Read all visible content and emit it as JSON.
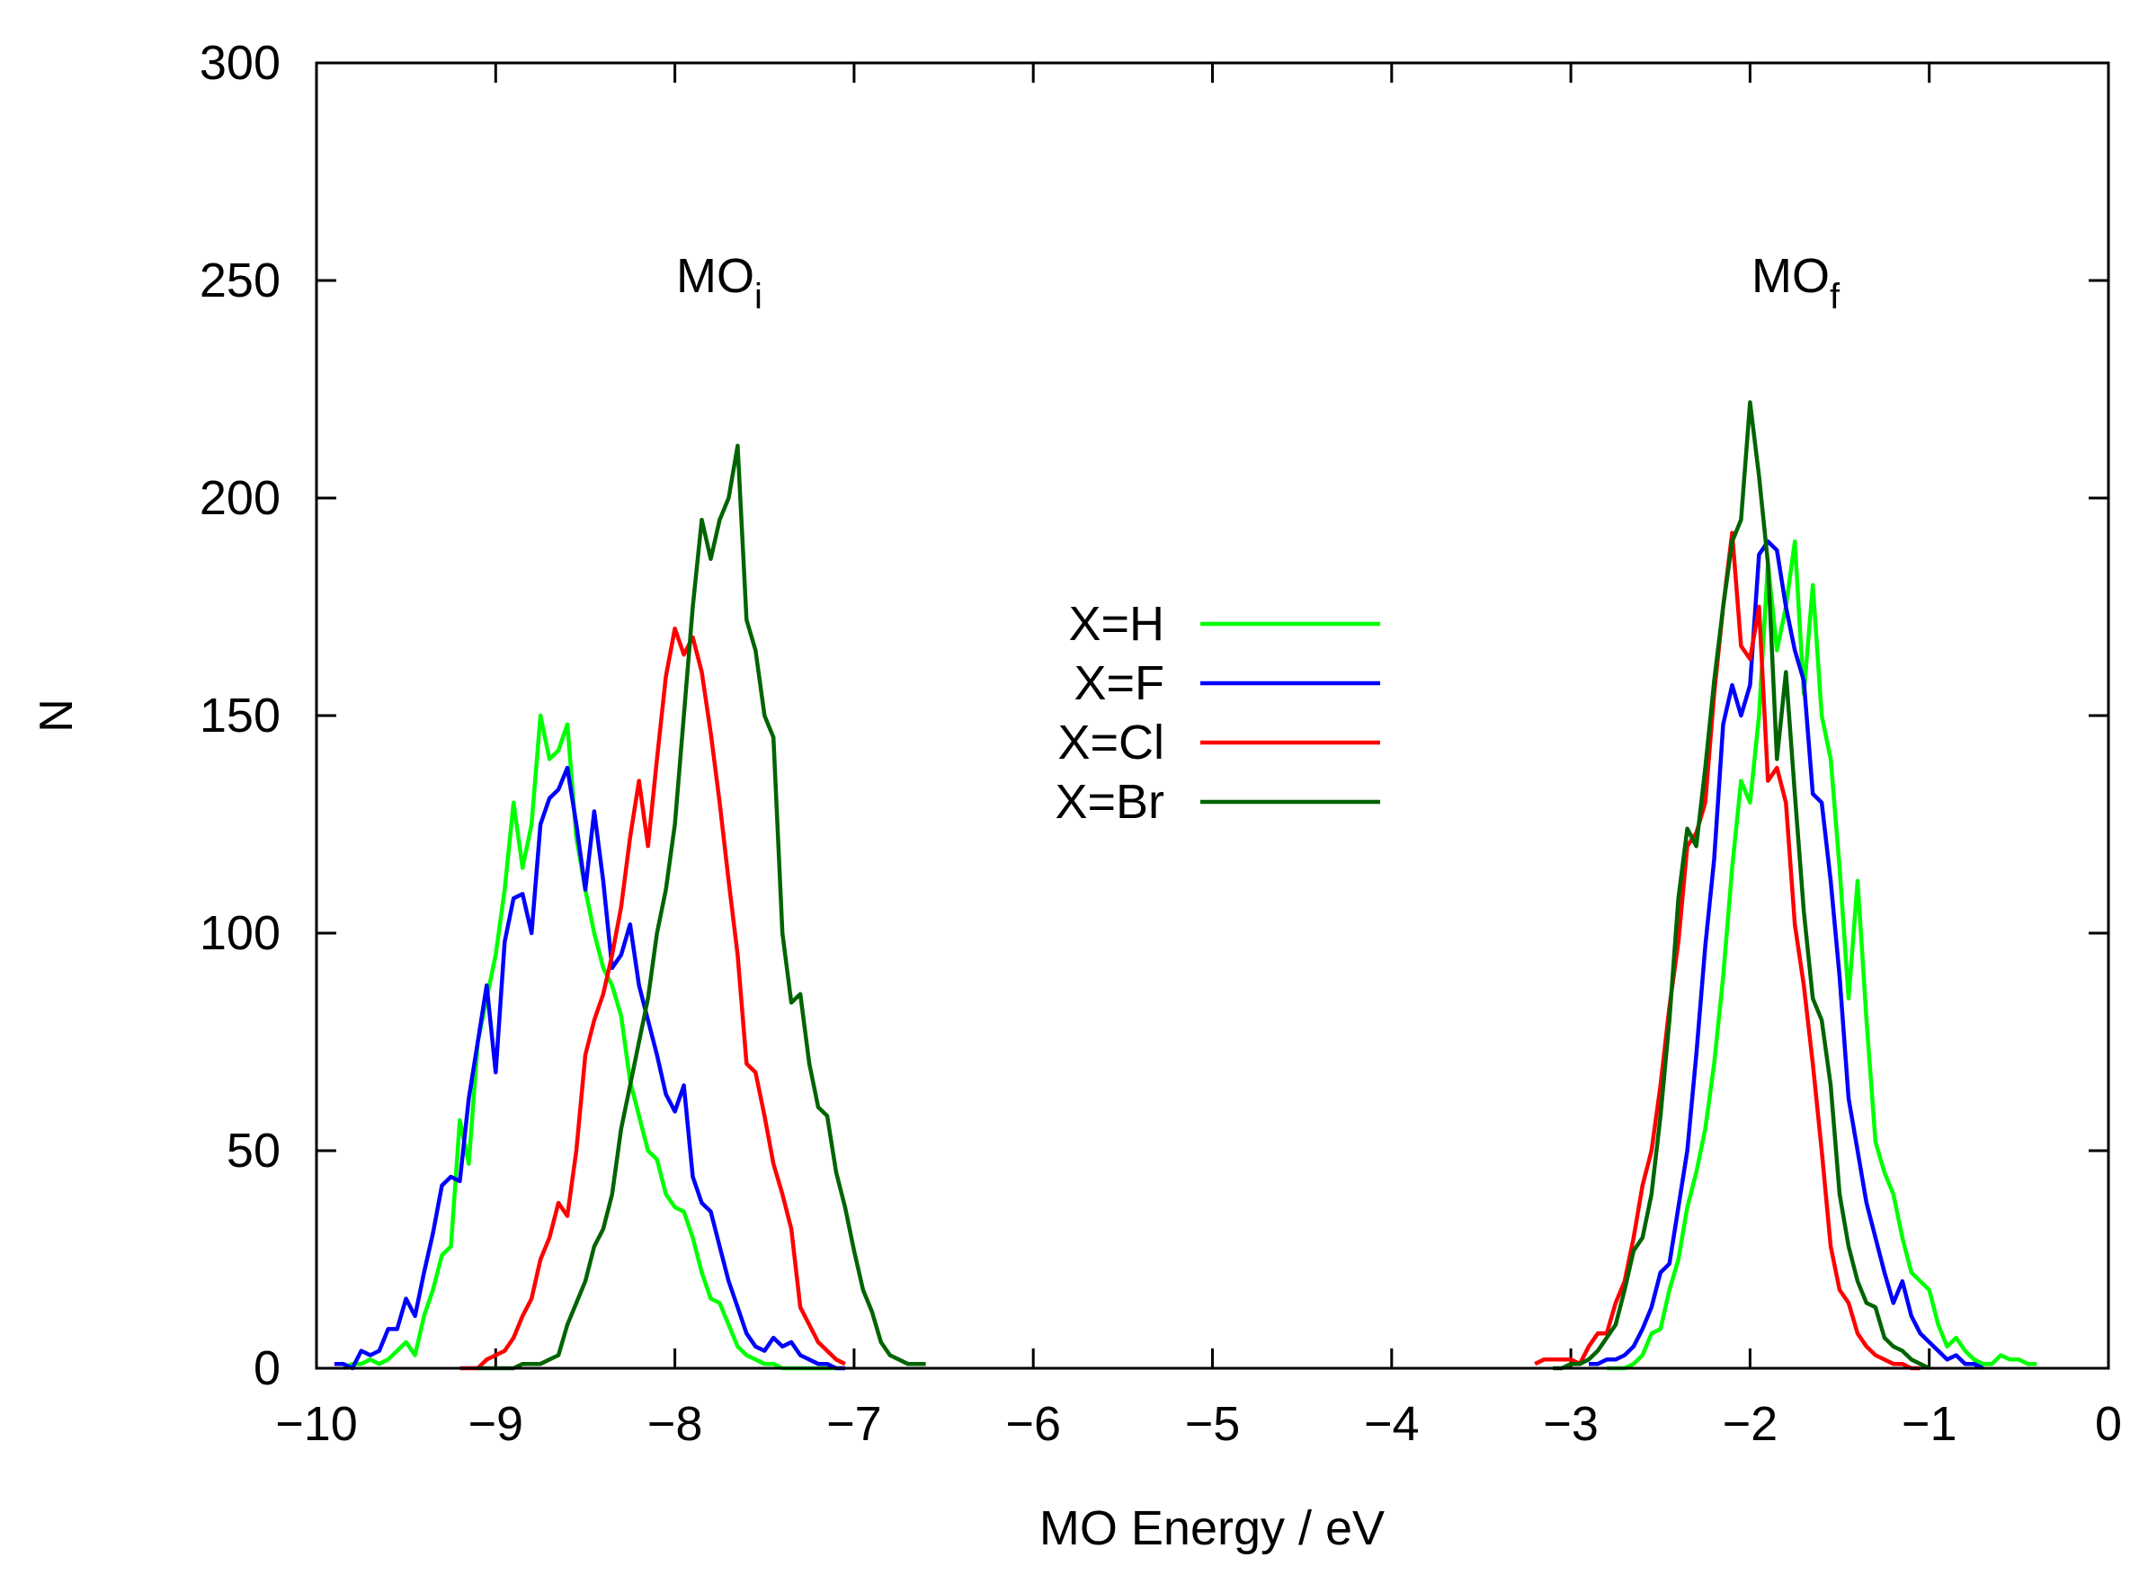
{
  "chart_data": {
    "type": "line",
    "title": "",
    "xlabel": "MO Energy / eV",
    "ylabel": "N",
    "xlim": [
      -10,
      0
    ],
    "ylim": [
      0,
      300
    ],
    "xticks": [
      -10,
      -9,
      -8,
      -7,
      -6,
      -5,
      -4,
      -3,
      -2,
      -1,
      0
    ],
    "xtick_labels": [
      "−10",
      "−9",
      "−8",
      "−7",
      "−6",
      "−5",
      "−4",
      "−3",
      "−2",
      "−1",
      "0"
    ],
    "yticks": [
      0,
      50,
      100,
      150,
      200,
      250,
      300
    ],
    "ytick_labels": [
      "0",
      "50",
      "100",
      "150",
      "200",
      "250",
      "300"
    ],
    "grid": false,
    "legend_position": "center",
    "annotations": [
      {
        "text": "MO",
        "sub": "i",
        "x": -8.3,
        "y": 250
      },
      {
        "text": "MO",
        "sub": "f",
        "x": -2.3,
        "y": 250
      }
    ],
    "series": [
      {
        "name": "X=H",
        "color": "#00ff00",
        "segments": [
          {
            "x": [
              -9.85,
              -9.8,
              -9.75,
              -9.7,
              -9.65,
              -9.6,
              -9.55,
              -9.5,
              -9.45,
              -9.4,
              -9.35,
              -9.3,
              -9.25,
              -9.2,
              -9.15,
              -9.1,
              -9.05,
              -9.0,
              -8.95,
              -8.9,
              -8.85,
              -8.8,
              -8.75,
              -8.7,
              -8.65,
              -8.6,
              -8.55,
              -8.5,
              -8.45,
              -8.4,
              -8.35,
              -8.3,
              -8.25,
              -8.2,
              -8.15,
              -8.1,
              -8.05,
              -8.0,
              -7.95,
              -7.9,
              -7.85,
              -7.8,
              -7.75,
              -7.7,
              -7.65,
              -7.6,
              -7.55,
              -7.5,
              -7.45,
              -7.4,
              -7.35,
              -7.3,
              -7.25,
              -7.2,
              -7.15,
              -7.1
            ],
            "y": [
              0,
              1,
              1,
              2,
              1,
              2,
              4,
              6,
              3,
              12,
              18,
              26,
              28,
              57,
              47,
              75,
              85,
              95,
              110,
              130,
              115,
              125,
              150,
              140,
              142,
              148,
              122,
              110,
              100,
              92,
              88,
              81,
              66,
              58,
              50,
              48,
              40,
              37,
              36,
              30,
              22,
              16,
              15,
              10,
              5,
              3,
              2,
              1,
              1,
              0,
              0,
              0,
              0,
              0,
              0,
              0
            ]
          },
          {
            "x": [
              -2.8,
              -2.75,
              -2.7,
              -2.65,
              -2.6,
              -2.55,
              -2.5,
              -2.45,
              -2.4,
              -2.35,
              -2.3,
              -2.25,
              -2.2,
              -2.15,
              -2.1,
              -2.05,
              -2.0,
              -1.95,
              -1.9,
              -1.85,
              -1.8,
              -1.75,
              -1.7,
              -1.65,
              -1.6,
              -1.55,
              -1.5,
              -1.45,
              -1.4,
              -1.35,
              -1.3,
              -1.25,
              -1.2,
              -1.15,
              -1.1,
              -1.05,
              -1.0,
              -0.95,
              -0.9,
              -0.85,
              -0.8,
              -0.75,
              -0.7,
              -0.65,
              -0.6,
              -0.55,
              -0.5,
              -0.45,
              -0.4
            ],
            "y": [
              0,
              0,
              0,
              1,
              3,
              8,
              9,
              18,
              25,
              37,
              45,
              55,
              70,
              90,
              115,
              135,
              130,
              150,
              185,
              165,
              175,
              190,
              155,
              180,
              150,
              140,
              115,
              85,
              112,
              80,
              52,
              45,
              40,
              30,
              22,
              20,
              18,
              10,
              5,
              7,
              4,
              2,
              1,
              1,
              3,
              2,
              2,
              1,
              1
            ]
          }
        ]
      },
      {
        "name": "X=F",
        "color": "#0000ff",
        "segments": [
          {
            "x": [
              -9.9,
              -9.85,
              -9.8,
              -9.75,
              -9.7,
              -9.65,
              -9.6,
              -9.55,
              -9.5,
              -9.45,
              -9.4,
              -9.35,
              -9.3,
              -9.25,
              -9.2,
              -9.15,
              -9.1,
              -9.05,
              -9.0,
              -8.95,
              -8.9,
              -8.85,
              -8.8,
              -8.75,
              -8.7,
              -8.65,
              -8.6,
              -8.55,
              -8.5,
              -8.45,
              -8.4,
              -8.35,
              -8.3,
              -8.25,
              -8.2,
              -8.15,
              -8.1,
              -8.05,
              -8.0,
              -7.95,
              -7.9,
              -7.85,
              -7.8,
              -7.75,
              -7.7,
              -7.65,
              -7.6,
              -7.55,
              -7.5,
              -7.45,
              -7.4,
              -7.35,
              -7.3,
              -7.25,
              -7.2,
              -7.15,
              -7.1,
              -7.05
            ],
            "y": [
              1,
              1,
              0,
              4,
              3,
              4,
              9,
              9,
              16,
              12,
              22,
              31,
              42,
              44,
              43,
              62,
              75,
              88,
              68,
              98,
              108,
              109,
              100,
              125,
              131,
              133,
              138,
              125,
              110,
              128,
              112,
              92,
              95,
              102,
              88,
              80,
              72,
              63,
              59,
              65,
              44,
              38,
              36,
              28,
              20,
              14,
              8,
              5,
              4,
              7,
              5,
              6,
              3,
              2,
              1,
              1,
              0,
              0
            ]
          },
          {
            "x": [
              -2.9,
              -2.85,
              -2.8,
              -2.75,
              -2.7,
              -2.65,
              -2.6,
              -2.55,
              -2.5,
              -2.45,
              -2.4,
              -2.35,
              -2.3,
              -2.25,
              -2.2,
              -2.15,
              -2.1,
              -2.05,
              -2.0,
              -1.95,
              -1.9,
              -1.85,
              -1.8,
              -1.75,
              -1.7,
              -1.65,
              -1.6,
              -1.55,
              -1.5,
              -1.45,
              -1.4,
              -1.35,
              -1.3,
              -1.25,
              -1.2,
              -1.15,
              -1.1,
              -1.05,
              -1.0,
              -0.95,
              -0.9,
              -0.85,
              -0.8,
              -0.75,
              -0.7
            ],
            "y": [
              1,
              1,
              2,
              2,
              3,
              5,
              9,
              14,
              22,
              24,
              37,
              50,
              72,
              97,
              117,
              148,
              157,
              150,
              157,
              187,
              190,
              188,
              175,
              165,
              158,
              132,
              130,
              112,
              90,
              62,
              50,
              38,
              30,
              22,
              15,
              20,
              12,
              8,
              6,
              4,
              2,
              3,
              1,
              1,
              0
            ]
          }
        ]
      },
      {
        "name": "X=Cl",
        "color": "#ff0000",
        "segments": [
          {
            "x": [
              -9.2,
              -9.15,
              -9.1,
              -9.05,
              -9.0,
              -8.95,
              -8.9,
              -8.85,
              -8.8,
              -8.75,
              -8.7,
              -8.65,
              -8.6,
              -8.55,
              -8.5,
              -8.45,
              -8.4,
              -8.35,
              -8.3,
              -8.25,
              -8.2,
              -8.15,
              -8.1,
              -8.05,
              -8.0,
              -7.95,
              -7.9,
              -7.85,
              -7.8,
              -7.75,
              -7.7,
              -7.65,
              -7.6,
              -7.55,
              -7.5,
              -7.45,
              -7.4,
              -7.35,
              -7.3,
              -7.25,
              -7.2,
              -7.15,
              -7.1,
              -7.05
            ],
            "y": [
              0,
              0,
              0,
              2,
              3,
              4,
              7,
              12,
              16,
              25,
              30,
              38,
              35,
              50,
              72,
              80,
              86,
              95,
              106,
              122,
              135,
              120,
              140,
              159,
              170,
              164,
              168,
              160,
              146,
              130,
              112,
              95,
              70,
              68,
              58,
              47,
              40,
              32,
              14,
              10,
              6,
              4,
              2,
              1
            ]
          },
          {
            "x": [
              -3.2,
              -3.15,
              -3.1,
              -3.05,
              -3.0,
              -2.95,
              -2.9,
              -2.85,
              -2.8,
              -2.75,
              -2.7,
              -2.65,
              -2.6,
              -2.55,
              -2.5,
              -2.45,
              -2.4,
              -2.35,
              -2.3,
              -2.25,
              -2.2,
              -2.15,
              -2.1,
              -2.05,
              -2.0,
              -1.95,
              -1.9,
              -1.85,
              -1.8,
              -1.75,
              -1.7,
              -1.65,
              -1.6,
              -1.55,
              -1.5,
              -1.45,
              -1.4,
              -1.35,
              -1.3,
              -1.25,
              -1.2,
              -1.15,
              -1.1,
              -1.05
            ],
            "y": [
              1,
              2,
              2,
              2,
              2,
              1,
              5,
              8,
              8,
              15,
              20,
              30,
              42,
              50,
              65,
              83,
              98,
              120,
              123,
              130,
              155,
              175,
              192,
              166,
              163,
              175,
              135,
              138,
              130,
              102,
              88,
              70,
              50,
              28,
              18,
              15,
              8,
              5,
              3,
              2,
              1,
              1,
              0,
              0
            ]
          }
        ]
      },
      {
        "name": "X=Br",
        "color": "#006400",
        "segments": [
          {
            "x": [
              -9.1,
              -9.05,
              -9.0,
              -8.95,
              -8.9,
              -8.85,
              -8.8,
              -8.75,
              -8.7,
              -8.65,
              -8.6,
              -8.55,
              -8.5,
              -8.45,
              -8.4,
              -8.35,
              -8.3,
              -8.25,
              -8.2,
              -8.15,
              -8.1,
              -8.05,
              -8.0,
              -7.95,
              -7.9,
              -7.85,
              -7.8,
              -7.75,
              -7.7,
              -7.65,
              -7.6,
              -7.55,
              -7.5,
              -7.45,
              -7.4,
              -7.35,
              -7.3,
              -7.25,
              -7.2,
              -7.15,
              -7.1,
              -7.05,
              -7.0,
              -6.95,
              -6.9,
              -6.85,
              -6.8,
              -6.75,
              -6.7,
              -6.65,
              -6.6
            ],
            "y": [
              0,
              0,
              0,
              0,
              0,
              1,
              1,
              1,
              2,
              3,
              10,
              15,
              20,
              28,
              32,
              40,
              55,
              65,
              75,
              85,
              100,
              110,
              125,
              150,
              175,
              195,
              186,
              195,
              200,
              212,
              172,
              165,
              150,
              145,
              100,
              84,
              86,
              70,
              60,
              58,
              45,
              37,
              27,
              18,
              13,
              6,
              3,
              2,
              1,
              1,
              1
            ]
          },
          {
            "x": [
              -3.1,
              -3.05,
              -3.0,
              -2.95,
              -2.9,
              -2.85,
              -2.8,
              -2.75,
              -2.7,
              -2.65,
              -2.6,
              -2.55,
              -2.5,
              -2.45,
              -2.4,
              -2.35,
              -2.3,
              -2.25,
              -2.2,
              -2.15,
              -2.1,
              -2.05,
              -2.0,
              -1.95,
              -1.9,
              -1.85,
              -1.8,
              -1.75,
              -1.7,
              -1.65,
              -1.6,
              -1.55,
              -1.5,
              -1.45,
              -1.4,
              -1.35,
              -1.3,
              -1.25,
              -1.2,
              -1.15,
              -1.1,
              -1.05,
              -1.0
            ],
            "y": [
              0,
              0,
              1,
              1,
              2,
              4,
              7,
              10,
              18,
              27,
              30,
              40,
              58,
              80,
              108,
              124,
              120,
              138,
              158,
              175,
              190,
              195,
              222,
              205,
              185,
              140,
              160,
              132,
              105,
              85,
              80,
              65,
              40,
              28,
              20,
              15,
              14,
              7,
              5,
              4,
              2,
              1,
              0
            ]
          }
        ]
      }
    ]
  }
}
